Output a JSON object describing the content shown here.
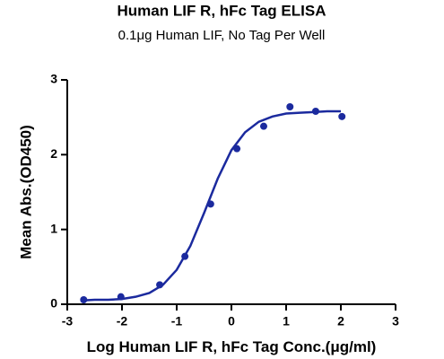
{
  "chart_data": {
    "type": "scatter",
    "title": "Human LIF R, hFc Tag ELISA",
    "subtitle": "0.1μg Human LIF, No Tag Per Well",
    "x_label": "Log Human LIF R, hFc Tag Conc.(μg/ml)",
    "y_label": "Mean Abs.(OD450)",
    "xlim": [
      -3,
      3
    ],
    "xticks": [
      -3,
      -2,
      -1,
      0,
      1,
      2,
      3
    ],
    "ylim": [
      0,
      3
    ],
    "yticks": [
      0,
      1,
      2,
      3
    ],
    "series": [
      {
        "color": "#1b2a9e",
        "line": false,
        "x": [
          -2.7,
          -2.02,
          -1.31,
          -0.85,
          -0.38,
          0.1,
          0.59,
          1.07,
          1.54,
          2.02
        ],
        "values": [
          0.06,
          0.1,
          0.26,
          0.64,
          1.34,
          2.08,
          2.38,
          2.64,
          2.58,
          2.51
        ]
      },
      {
        "color": "#1b2a9e",
        "line": true,
        "x": [
          -2.75,
          -2.5,
          -2.25,
          -2.0,
          -1.75,
          -1.5,
          -1.25,
          -1.0,
          -0.75,
          -0.5,
          -0.25,
          0,
          0.25,
          0.5,
          0.75,
          1.0,
          1.25,
          1.5,
          1.75,
          2.0
        ],
        "values": [
          0.05,
          0.06,
          0.06,
          0.07,
          0.1,
          0.15,
          0.26,
          0.46,
          0.78,
          1.22,
          1.68,
          2.06,
          2.3,
          2.44,
          2.51,
          2.55,
          2.56,
          2.57,
          2.58,
          2.58
        ]
      }
    ]
  }
}
